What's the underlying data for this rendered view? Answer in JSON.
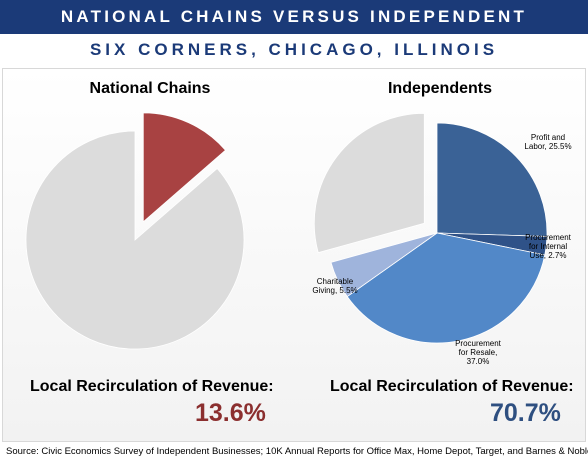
{
  "header": {
    "title": "NATIONAL CHAINS VERSUS INDEPENDENT RETAILERS",
    "subtitle": "SIX CORNERS, CHICAGO, ILLINOIS"
  },
  "left": {
    "title": "National Chains",
    "recirc_label": "Local Recirculation of Revenue:",
    "recirc_value": "13.6%"
  },
  "right": {
    "title": "Independents",
    "recirc_label": "Local Recirculation of Revenue:",
    "recirc_value": "70.7%"
  },
  "source": "Source: Civic Economics Survey of Independent Businesses; 10K Annual Reports for Office Max, Home Depot, Target, and Barnes & Noble",
  "colors": {
    "title_bar": "#1b3a78",
    "chains_highlight": "#a84242",
    "other": "#dcdcdc",
    "profit": "#3a6296",
    "internal": "#2f5288",
    "resale": "#5288c8",
    "charitable": "#9fb4dc"
  },
  "chart_data": [
    {
      "type": "pie",
      "title": "National Chains",
      "slices": [
        {
          "label": "",
          "value": 13.6,
          "exploded": true,
          "color": "#a84242"
        },
        {
          "label": "",
          "value": 86.4,
          "exploded": false,
          "color": "#dcdcdc"
        }
      ]
    },
    {
      "type": "pie",
      "title": "Independents",
      "slices": [
        {
          "label": [
            "Profit and",
            "Labor, 25.5%"
          ],
          "value": 25.5,
          "exploded": false,
          "color": "#3a6296"
        },
        {
          "label": [
            "Procurement",
            "for Internal",
            "Use, 2.7%"
          ],
          "value": 2.7,
          "exploded": false,
          "color": "#2f5288"
        },
        {
          "label": [
            "Procurement",
            "for Resale,",
            "37.0%"
          ],
          "value": 37.0,
          "exploded": false,
          "color": "#5288c8"
        },
        {
          "label": [
            "Charitable",
            "Giving, 5.5%"
          ],
          "value": 5.5,
          "exploded": false,
          "color": "#9fb4dc"
        },
        {
          "label": "",
          "value": 29.3,
          "exploded": true,
          "color": "#dcdcdc"
        }
      ]
    }
  ]
}
